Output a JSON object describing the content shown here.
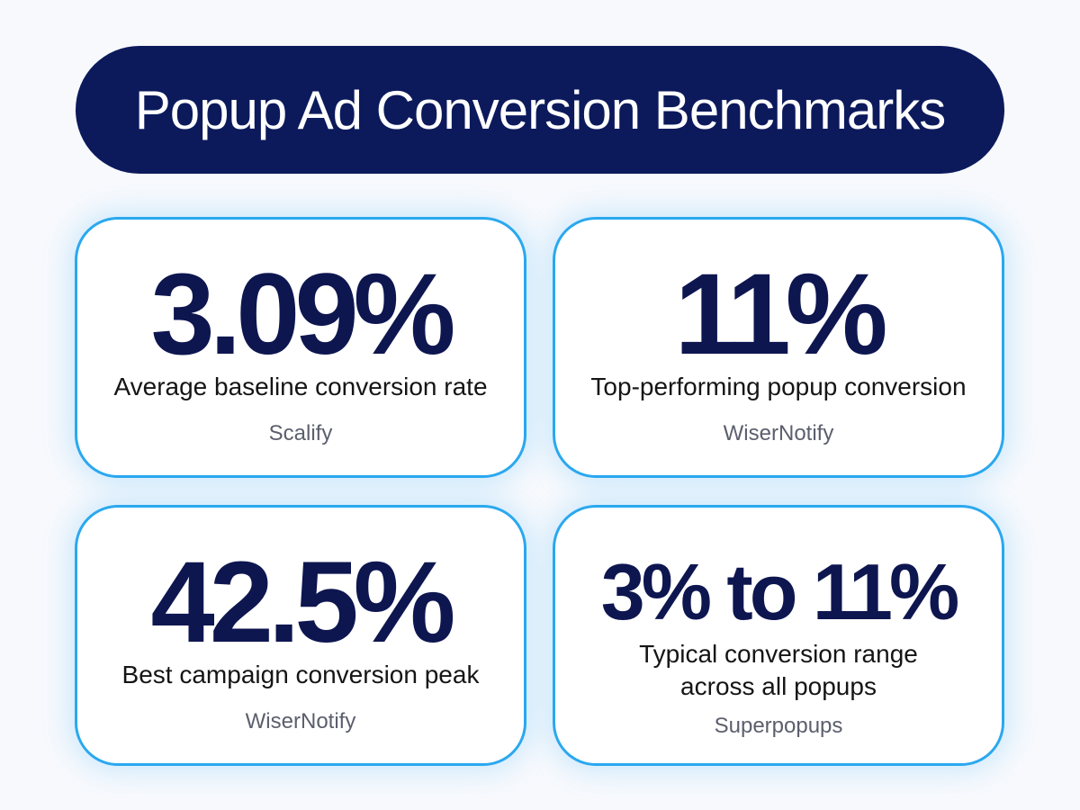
{
  "header": {
    "title": "Popup Ad Conversion Benchmarks"
  },
  "cards": [
    {
      "value": "3.09%",
      "description": "Average baseline conversion rate",
      "source": "Scalify"
    },
    {
      "value": "11%",
      "description": "Top-performing popup conversion",
      "source": "WiserNotify"
    },
    {
      "value": "42.5%",
      "description": "Best campaign conversion peak",
      "source": "WiserNotify"
    },
    {
      "value": "3% to 11%",
      "description_lines": [
        "Typical conversion range",
        "across all popups"
      ],
      "source": "Superpopups"
    }
  ],
  "colors": {
    "title_background": "#0c1a5c",
    "value_text": "#0e1650",
    "card_border": "#2aa8ef",
    "page_background": "#f7f9fd"
  }
}
